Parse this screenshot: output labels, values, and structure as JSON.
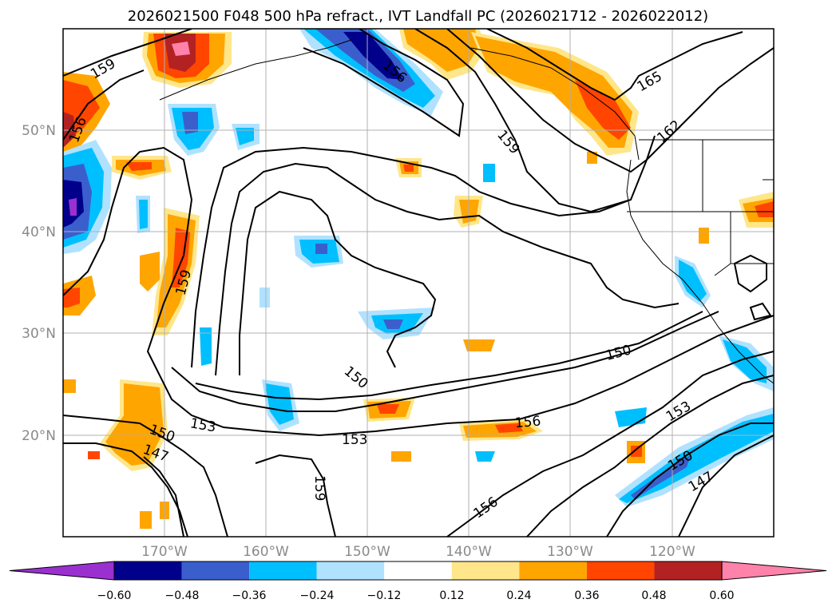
{
  "title": "2026021500 F048 500 hPa refract., IVT Landfall PC (2026021712 - 2026022012)",
  "lat_labels": [
    "50°N",
    "40°N",
    "30°N",
    "20°N"
  ],
  "lon_labels": [
    "170°W",
    "160°W",
    "150°W",
    "140°W",
    "130°W",
    "120°W"
  ],
  "colorbar": {
    "ticks": [
      "−0.60",
      "−0.48",
      "−0.36",
      "−0.24",
      "−0.12",
      "0.12",
      "0.24",
      "0.36",
      "0.48",
      "0.60"
    ],
    "colors": [
      "#9b30d0",
      "#00008b",
      "#3a5fcd",
      "#00bfff",
      "#b0e2ff",
      "#ffffff",
      "#ffe68a",
      "#ffa500",
      "#ff4500",
      "#b22222",
      "#ff82ab"
    ]
  },
  "contour_labels": [
    "159",
    "156",
    "156",
    "165",
    "159",
    "162",
    "159",
    "150",
    "150",
    "153",
    "150",
    "147",
    "153",
    "156",
    "153",
    "159",
    "156",
    "150",
    "147"
  ]
}
